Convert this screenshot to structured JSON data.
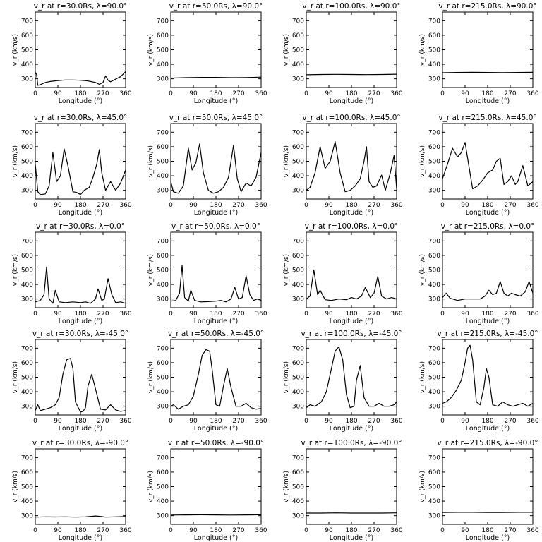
{
  "figure": {
    "type": "line-grid",
    "rows": 5,
    "cols": 4,
    "xlabel": "Longitude (°)",
    "ylabel": "v_r (km/s)",
    "xticks": [
      0,
      90,
      180,
      270,
      360
    ],
    "yticks": [
      300,
      400,
      500,
      600,
      700
    ],
    "xlim": [
      0,
      360
    ],
    "ylim": [
      240,
      760
    ]
  },
  "chart_data": [
    {
      "type": "line",
      "title": "v_r at r=30.0Rs, λ=90.0°",
      "xlabel": "Longitude (°)",
      "ylabel": "v_r (km/s)",
      "xlim": [
        0,
        360
      ],
      "ylim": [
        240,
        760
      ],
      "x": [
        0,
        5,
        10,
        20,
        40,
        60,
        90,
        120,
        150,
        180,
        210,
        240,
        255,
        270,
        280,
        290,
        300,
        320,
        340,
        360
      ],
      "y": [
        345,
        330,
        255,
        260,
        275,
        282,
        288,
        292,
        292,
        290,
        285,
        275,
        262,
        275,
        320,
        290,
        280,
        298,
        315,
        350
      ]
    },
    {
      "type": "line",
      "title": "v_r at r=50.0Rs, λ=90.0°",
      "xlabel": "Longitude (°)",
      "ylabel": "v_r (km/s)",
      "xlim": [
        0,
        360
      ],
      "ylim": [
        240,
        760
      ],
      "x": [
        0,
        60,
        120,
        180,
        240,
        300,
        360
      ],
      "y": [
        305,
        308,
        310,
        310,
        308,
        309,
        312
      ]
    },
    {
      "type": "line",
      "title": "v_r at r=100.0Rs, λ=90.0°",
      "xlabel": "Longitude (°)",
      "ylabel": "v_r (km/s)",
      "xlim": [
        0,
        360
      ],
      "ylim": [
        240,
        760
      ],
      "x": [
        0,
        60,
        120,
        180,
        240,
        300,
        360
      ],
      "y": [
        328,
        330,
        331,
        330,
        329,
        330,
        332
      ]
    },
    {
      "type": "line",
      "title": "v_r at r=215.0Rs, λ=90.0°",
      "xlabel": "Longitude (°)",
      "ylabel": "v_r (km/s)",
      "xlim": [
        0,
        360
      ],
      "ylim": [
        240,
        760
      ],
      "x": [
        0,
        60,
        120,
        180,
        240,
        300,
        360
      ],
      "y": [
        342,
        344,
        345,
        344,
        343,
        344,
        345
      ]
    },
    {
      "type": "line",
      "title": "v_r at r=30.0Rs, λ=45.0°",
      "xlabel": "Longitude (°)",
      "ylabel": "v_r (km/s)",
      "xlim": [
        0,
        360
      ],
      "ylim": [
        240,
        760
      ],
      "x": [
        0,
        10,
        20,
        40,
        55,
        70,
        85,
        100,
        115,
        130,
        150,
        165,
        180,
        195,
        215,
        230,
        245,
        255,
        265,
        280,
        300,
        320,
        340,
        360
      ],
      "y": [
        480,
        290,
        270,
        275,
        330,
        560,
        360,
        400,
        585,
        470,
        290,
        285,
        270,
        300,
        320,
        390,
        480,
        580,
        420,
        300,
        360,
        300,
        350,
        440
      ]
    },
    {
      "type": "line",
      "title": "v_r at r=50.0Rs, λ=45.0°",
      "xlabel": "Longitude (°)",
      "ylabel": "v_r (km/s)",
      "xlim": [
        0,
        360
      ],
      "ylim": [
        240,
        760
      ],
      "x": [
        0,
        10,
        30,
        50,
        70,
        85,
        100,
        115,
        130,
        150,
        170,
        190,
        210,
        230,
        250,
        265,
        280,
        300,
        320,
        340,
        360
      ],
      "y": [
        360,
        290,
        280,
        330,
        590,
        440,
        490,
        620,
        420,
        300,
        280,
        290,
        320,
        390,
        610,
        380,
        290,
        350,
        330,
        390,
        560
      ]
    },
    {
      "type": "line",
      "title": "v_r at r=100.0Rs, λ=45.0°",
      "xlabel": "Longitude (°)",
      "ylabel": "v_r (km/s)",
      "xlim": [
        0,
        360
      ],
      "ylim": [
        240,
        760
      ],
      "x": [
        0,
        15,
        35,
        55,
        75,
        95,
        115,
        135,
        155,
        175,
        195,
        215,
        230,
        240,
        250,
        265,
        280,
        300,
        315,
        335,
        350,
        360
      ],
      "y": [
        300,
        320,
        420,
        600,
        450,
        500,
        635,
        420,
        290,
        300,
        330,
        380,
        500,
        600,
        360,
        320,
        330,
        405,
        300,
        420,
        540,
        310
      ]
    },
    {
      "type": "line",
      "title": "v_r at r=215.0Rs, λ=45.0°",
      "xlabel": "Longitude (°)",
      "ylabel": "v_r (km/s)",
      "xlim": [
        0,
        360
      ],
      "ylim": [
        240,
        760
      ],
      "x": [
        0,
        20,
        40,
        60,
        75,
        90,
        105,
        120,
        140,
        160,
        180,
        200,
        215,
        230,
        245,
        260,
        275,
        290,
        300,
        320,
        340,
        360
      ],
      "y": [
        380,
        480,
        590,
        530,
        560,
        630,
        470,
        310,
        330,
        370,
        420,
        440,
        500,
        520,
        340,
        360,
        400,
        340,
        360,
        470,
        330,
        360
      ]
    },
    {
      "type": "line",
      "title": "v_r at r=30.0Rs, λ=0.0°",
      "xlabel": "Longitude (°)",
      "ylabel": "v_r (km/s)",
      "xlim": [
        0,
        360
      ],
      "ylim": [
        240,
        760
      ],
      "x": [
        0,
        20,
        35,
        45,
        55,
        70,
        80,
        95,
        120,
        150,
        180,
        200,
        220,
        240,
        250,
        265,
        275,
        290,
        305,
        320,
        340,
        360
      ],
      "y": [
        280,
        290,
        330,
        520,
        300,
        270,
        360,
        280,
        275,
        280,
        275,
        280,
        270,
        300,
        370,
        290,
        300,
        440,
        330,
        275,
        280,
        270
      ]
    },
    {
      "type": "line",
      "title": "v_r at r=50.0Rs, λ=0.0°",
      "xlabel": "Longitude (°)",
      "ylabel": "v_r (km/s)",
      "xlim": [
        0,
        360
      ],
      "ylim": [
        240,
        760
      ],
      "x": [
        0,
        20,
        35,
        45,
        55,
        70,
        80,
        95,
        120,
        150,
        180,
        200,
        220,
        240,
        255,
        270,
        285,
        300,
        315,
        330,
        345,
        360
      ],
      "y": [
        285,
        290,
        340,
        530,
        310,
        285,
        360,
        290,
        280,
        282,
        285,
        290,
        280,
        300,
        380,
        300,
        310,
        460,
        330,
        290,
        300,
        290
      ]
    },
    {
      "type": "line",
      "title": "v_r at r=100.0Rs, λ=0.0°",
      "xlabel": "Longitude (°)",
      "ylabel": "v_r (km/s)",
      "xlim": [
        0,
        360
      ],
      "ylim": [
        240,
        760
      ],
      "x": [
        0,
        15,
        30,
        45,
        55,
        75,
        100,
        130,
        160,
        180,
        200,
        220,
        235,
        255,
        270,
        285,
        300,
        320,
        340,
        360
      ],
      "y": [
        300,
        320,
        500,
        330,
        360,
        295,
        290,
        300,
        295,
        310,
        300,
        320,
        380,
        310,
        340,
        455,
        320,
        300,
        310,
        300
      ]
    },
    {
      "type": "line",
      "title": "v_r at r=215.0Rs, λ=0.0°",
      "xlabel": "Longitude (°)",
      "ylabel": "v_r (km/s)",
      "xlim": [
        0,
        360
      ],
      "ylim": [
        240,
        760
      ],
      "x": [
        0,
        15,
        30,
        60,
        90,
        120,
        150,
        170,
        185,
        200,
        215,
        230,
        245,
        260,
        275,
        290,
        310,
        330,
        345,
        360
      ],
      "y": [
        310,
        340,
        305,
        290,
        300,
        300,
        300,
        320,
        360,
        330,
        340,
        420,
        340,
        320,
        340,
        330,
        320,
        350,
        420,
        340
      ]
    },
    {
      "type": "line",
      "title": "v_r at r=30.0Rs, λ=-45.0°",
      "xlabel": "Longitude (°)",
      "ylabel": "v_r (km/s)",
      "xlim": [
        0,
        360
      ],
      "ylim": [
        240,
        760
      ],
      "x": [
        0,
        10,
        20,
        40,
        60,
        80,
        95,
        110,
        125,
        140,
        150,
        160,
        180,
        190,
        200,
        210,
        225,
        240,
        260,
        280,
        300,
        320,
        340,
        360
      ],
      "y": [
        270,
        310,
        270,
        280,
        290,
        310,
        360,
        520,
        620,
        630,
        560,
        330,
        260,
        265,
        290,
        440,
        520,
        420,
        280,
        275,
        310,
        275,
        265,
        270
      ]
    },
    {
      "type": "line",
      "title": "v_r at r=50.0Rs, λ=-45.0°",
      "xlabel": "Longitude (°)",
      "ylabel": "v_r (km/s)",
      "xlim": [
        0,
        360
      ],
      "ylim": [
        240,
        760
      ],
      "x": [
        0,
        10,
        30,
        50,
        70,
        90,
        110,
        125,
        140,
        155,
        165,
        180,
        195,
        210,
        225,
        240,
        260,
        280,
        300,
        320,
        340,
        360
      ],
      "y": [
        300,
        310,
        280,
        300,
        310,
        370,
        520,
        650,
        690,
        680,
        550,
        310,
        300,
        440,
        560,
        430,
        300,
        300,
        320,
        290,
        280,
        285
      ]
    },
    {
      "type": "line",
      "title": "v_r at r=100.0Rs, λ=-45.0°",
      "xlabel": "Longitude (°)",
      "ylabel": "v_r (km/s)",
      "xlim": [
        0,
        360
      ],
      "ylim": [
        240,
        760
      ],
      "x": [
        0,
        15,
        35,
        60,
        80,
        100,
        115,
        130,
        145,
        160,
        175,
        190,
        200,
        215,
        230,
        250,
        270,
        290,
        310,
        330,
        350,
        360
      ],
      "y": [
        290,
        310,
        300,
        330,
        400,
        560,
        680,
        710,
        620,
        380,
        290,
        300,
        480,
        580,
        360,
        300,
        300,
        320,
        300,
        300,
        310,
        330
      ]
    },
    {
      "type": "line",
      "title": "v_r at r=215.0Rs, λ=-45.0°",
      "xlabel": "Longitude (°)",
      "ylabel": "v_r (km/s)",
      "xlim": [
        0,
        360
      ],
      "ylim": [
        240,
        760
      ],
      "x": [
        0,
        15,
        35,
        55,
        75,
        90,
        100,
        110,
        120,
        135,
        150,
        165,
        175,
        185,
        200,
        220,
        240,
        260,
        280,
        300,
        320,
        340,
        360
      ],
      "y": [
        320,
        330,
        360,
        410,
        480,
        600,
        700,
        720,
        620,
        330,
        310,
        430,
        560,
        500,
        310,
        300,
        330,
        310,
        300,
        310,
        320,
        300,
        320
      ]
    },
    {
      "type": "line",
      "title": "v_r at r=30.0Rs, λ=-90.0°",
      "xlabel": "Longitude (°)",
      "ylabel": "v_r (km/s)",
      "xlim": [
        0,
        360
      ],
      "ylim": [
        240,
        760
      ],
      "x": [
        0,
        40,
        80,
        120,
        160,
        200,
        240,
        260,
        280,
        320,
        360
      ],
      "y": [
        290,
        292,
        291,
        292,
        290,
        292,
        298,
        295,
        290,
        292,
        294
      ]
    },
    {
      "type": "line",
      "title": "v_r at r=50.0Rs, λ=-90.0°",
      "xlabel": "Longitude (°)",
      "ylabel": "v_r (km/s)",
      "xlim": [
        0,
        360
      ],
      "ylim": [
        240,
        760
      ],
      "x": [
        0,
        60,
        120,
        180,
        240,
        300,
        360
      ],
      "y": [
        304,
        305,
        306,
        305,
        304,
        305,
        306
      ]
    },
    {
      "type": "line",
      "title": "v_r at r=100.0Rs, λ=-90.0°",
      "xlabel": "Longitude (°)",
      "ylabel": "v_r (km/s)",
      "xlim": [
        0,
        360
      ],
      "ylim": [
        240,
        760
      ],
      "x": [
        0,
        60,
        120,
        180,
        240,
        300,
        360
      ],
      "y": [
        318,
        318,
        319,
        318,
        318,
        318,
        319
      ]
    },
    {
      "type": "line",
      "title": "v_r at r=215.0Rs, λ=-90.0°",
      "xlabel": "Longitude (°)",
      "ylabel": "v_r (km/s)",
      "xlim": [
        0,
        360
      ],
      "ylim": [
        240,
        760
      ],
      "x": [
        0,
        60,
        120,
        180,
        240,
        300,
        360
      ],
      "y": [
        322,
        323,
        323,
        322,
        322,
        323,
        323
      ]
    }
  ]
}
